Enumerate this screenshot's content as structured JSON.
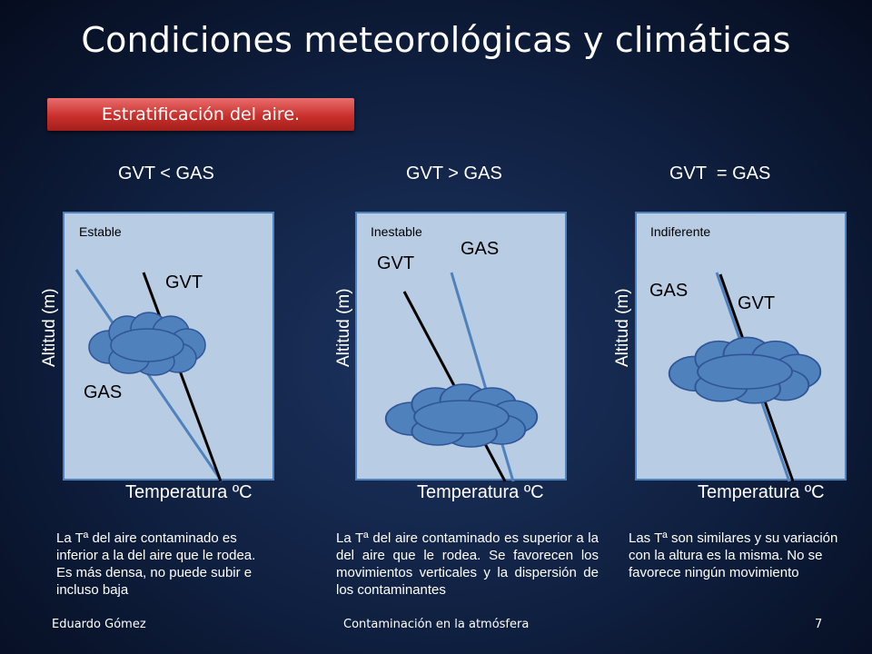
{
  "slide": {
    "title": "Condiciones meteorológicas y climáticas",
    "banner": "Estratificación del aire.",
    "page_number": "7"
  },
  "footer": {
    "author": "Eduardo Gómez",
    "topic": "Contaminación en la atmósfera"
  },
  "panels": [
    {
      "heading": "GVT < GAS",
      "state": "Estable",
      "y_axis": "Altitud (m)",
      "x_axis": "Temperatura ºC",
      "line_labels": {
        "gvt": "GVT",
        "gas": "GAS"
      },
      "description": "La Tª del aire contaminado es inferior a la del aire que le rodea. Es más densa, no puede subir e incluso baja"
    },
    {
      "heading": "GVT > GAS",
      "state": "Inestable",
      "y_axis": "Altitud (m)",
      "x_axis": "Temperatura ºC",
      "line_labels": {
        "gvt": "GVT",
        "gas": "GAS"
      },
      "description": "La Tª del aire contaminado es superior a la del aire que le rodea. Se favorecen los movimientos verticales y la dispersión de los contaminantes"
    },
    {
      "heading": "GVT  = GAS",
      "state": "Indiferente",
      "y_axis": "Altitud (m)",
      "x_axis": "Temperatura ºC",
      "line_labels": {
        "gvt": "GVT",
        "gas": "GAS"
      },
      "description": "Las Tª son similares y su variación con la altura es la misma. No se favorece ningún movimiento"
    }
  ],
  "colors": {
    "background": "#0f1f3f",
    "banner": "#c9302c",
    "panel_fill": "#b8cce4",
    "panel_border": "#4f81bd",
    "gas_line": "#4f81bd",
    "gvt_line": "#000000",
    "cloud": "#4f81bd"
  }
}
